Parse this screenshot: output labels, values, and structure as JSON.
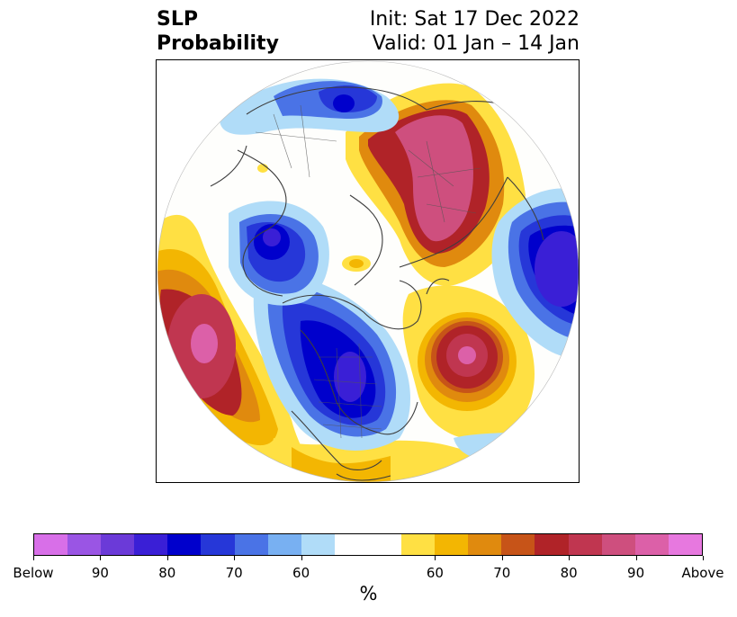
{
  "title": {
    "left_line1": "SLP",
    "left_line2": "Probability",
    "right_line1": "Init: Sat 17 Dec 2022",
    "right_line2": "Valid: 01 Jan – 14 Jan"
  },
  "colorbar": {
    "colors": [
      "#d86fe8",
      "#9a55e4",
      "#6b3ad8",
      "#3a1fd6",
      "#0000cc",
      "#2637d8",
      "#4a73e6",
      "#78b0f2",
      "#b0dcf8",
      "#ffffff",
      "#ffffff",
      "#ffe043",
      "#f3b602",
      "#e08a0e",
      "#c75418",
      "#b02328",
      "#c03650",
      "#ce4f7e",
      "#dc60a8",
      "#e778df"
    ],
    "tick_labels": [
      "Below",
      "90",
      "80",
      "70",
      "60",
      "60",
      "70",
      "80",
      "90",
      "Above"
    ],
    "unit": "%"
  },
  "map": {
    "projection": "polar-stereographic",
    "variable": "sea-level-pressure probability",
    "features": [
      {
        "name": "above-pacific",
        "sign": "above",
        "peak_percent": 95
      },
      {
        "name": "above-siberia",
        "sign": "above",
        "peak_percent": 95
      },
      {
        "name": "above-north-atlantic",
        "sign": "above",
        "peak_percent": 90
      },
      {
        "name": "below-north-america",
        "sign": "below",
        "peak_percent": 80
      },
      {
        "name": "below-europe",
        "sign": "below",
        "peak_percent": 80
      },
      {
        "name": "below-east-asia",
        "sign": "below",
        "peak_percent": 80
      },
      {
        "name": "below-north-pacific-edge",
        "sign": "below",
        "peak_percent": 80
      }
    ]
  }
}
